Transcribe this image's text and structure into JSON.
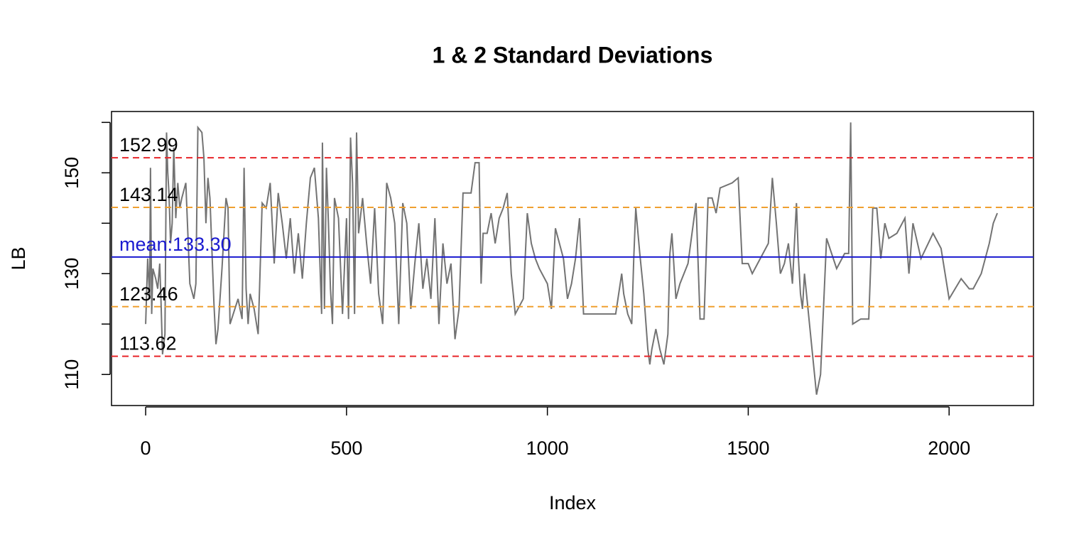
{
  "chart_data": {
    "type": "line",
    "title": "1 & 2 Standard Deviations",
    "xlabel": "Index",
    "ylabel": "LB",
    "x": [
      0,
      5,
      10,
      12,
      15,
      18,
      25,
      30,
      35,
      38,
      42,
      48,
      52,
      55,
      58,
      62,
      66,
      70,
      75,
      80,
      85,
      90,
      100,
      110,
      120,
      125,
      130,
      140,
      145,
      150,
      155,
      160,
      170,
      175,
      180,
      190,
      200,
      205,
      210,
      230,
      240,
      245,
      250,
      255,
      260,
      270,
      280,
      290,
      300,
      310,
      320,
      330,
      340,
      350,
      360,
      370,
      380,
      390,
      400,
      410,
      420,
      430,
      438,
      440,
      445,
      450,
      455,
      460,
      465,
      470,
      480,
      490,
      500,
      505,
      510,
      515,
      520,
      525,
      530,
      540,
      550,
      560,
      570,
      580,
      590,
      600,
      610,
      620,
      630,
      640,
      650,
      660,
      670,
      680,
      690,
      700,
      710,
      720,
      730,
      740,
      750,
      760,
      770,
      780,
      790,
      810,
      820,
      830,
      835,
      840,
      850,
      860,
      870,
      880,
      890,
      900,
      910,
      920,
      940,
      950,
      960,
      970,
      980,
      1000,
      1010,
      1020,
      1030,
      1040,
      1050,
      1060,
      1070,
      1080,
      1090,
      1100,
      1150,
      1170,
      1185,
      1190,
      1200,
      1210,
      1215,
      1220,
      1230,
      1240,
      1250,
      1255,
      1260,
      1270,
      1280,
      1290,
      1300,
      1305,
      1310,
      1320,
      1330,
      1350,
      1370,
      1380,
      1390,
      1400,
      1410,
      1420,
      1430,
      1460,
      1475,
      1485,
      1500,
      1510,
      1530,
      1550,
      1560,
      1570,
      1580,
      1590,
      1600,
      1610,
      1620,
      1625,
      1630,
      1635,
      1640,
      1660,
      1670,
      1680,
      1695,
      1720,
      1740,
      1750,
      1755,
      1760,
      1780,
      1800,
      1810,
      1820,
      1830,
      1840,
      1850,
      1870,
      1890,
      1900,
      1910,
      1930,
      1960,
      1980,
      2000,
      2030,
      2050,
      2060,
      2080,
      2090,
      2100,
      2110,
      2120
    ],
    "series": [
      {
        "name": "LB",
        "color": "#737373",
        "values": [
          120,
          133,
          125,
          151,
          122,
          131,
          129,
          127,
          132,
          125,
          114,
          118,
          158,
          150,
          146,
          136,
          140,
          155,
          141,
          148,
          143,
          145,
          148,
          128,
          125,
          128,
          159,
          158,
          153,
          140,
          149,
          145,
          124,
          116,
          119,
          131,
          145,
          143,
          120,
          125,
          121,
          151,
          127,
          120,
          126,
          123,
          118,
          144,
          143,
          148,
          132,
          146,
          140,
          133,
          141,
          130,
          138,
          129,
          140,
          149,
          151,
          141,
          122,
          156,
          123,
          151,
          140,
          127,
          120,
          145,
          141,
          122,
          141,
          121,
          157,
          148,
          122,
          158,
          138,
          145,
          136,
          128,
          143,
          126,
          120,
          148,
          145,
          140,
          120,
          144,
          140,
          123,
          132,
          140,
          127,
          133,
          125,
          141,
          120,
          136,
          128,
          132,
          117,
          123,
          146,
          146,
          152,
          152,
          128,
          138,
          138,
          142,
          136,
          141,
          143,
          146,
          130,
          122,
          125,
          142,
          136,
          133,
          131,
          128,
          123,
          139,
          136,
          133,
          125,
          128,
          133,
          141,
          122,
          122,
          122,
          122,
          130,
          126,
          122,
          120,
          133,
          143,
          134,
          126,
          115,
          112,
          115,
          119,
          115,
          112,
          118,
          134,
          138,
          125,
          128,
          132,
          144,
          121,
          121,
          145,
          145,
          142,
          147,
          148,
          149,
          132,
          132,
          130,
          133,
          136,
          149,
          140,
          130,
          132,
          136,
          128,
          144,
          133,
          126,
          123,
          130,
          114,
          106,
          110,
          137,
          131,
          134,
          134,
          160,
          120,
          121,
          121,
          143,
          143,
          133,
          140,
          137,
          138,
          141,
          130,
          140,
          133,
          138,
          135,
          125,
          129,
          127,
          127,
          130,
          133,
          136,
          140,
          142
        ]
      }
    ],
    "reference_lines": [
      {
        "value": 152.99,
        "label": "152.99",
        "color": "#e8262a",
        "dash": true
      },
      {
        "value": 143.14,
        "label": "143.14",
        "color": "#f0a030",
        "dash": true
      },
      {
        "value": 133.3,
        "label": "mean:133.30",
        "color": "#1a1ad0",
        "dash": false
      },
      {
        "value": 123.46,
        "label": "123.46",
        "color": "#f0a030",
        "dash": true
      },
      {
        "value": 113.62,
        "label": "113.62",
        "color": "#e8262a",
        "dash": true
      }
    ],
    "xlim": [
      -85,
      2210
    ],
    "ylim": [
      103.84,
      162.16
    ],
    "xticks": [
      0,
      500,
      1000,
      1500,
      2000
    ],
    "yticks": [
      110,
      130,
      150
    ],
    "yticks_unlabeled": [
      120,
      140,
      160
    ]
  }
}
